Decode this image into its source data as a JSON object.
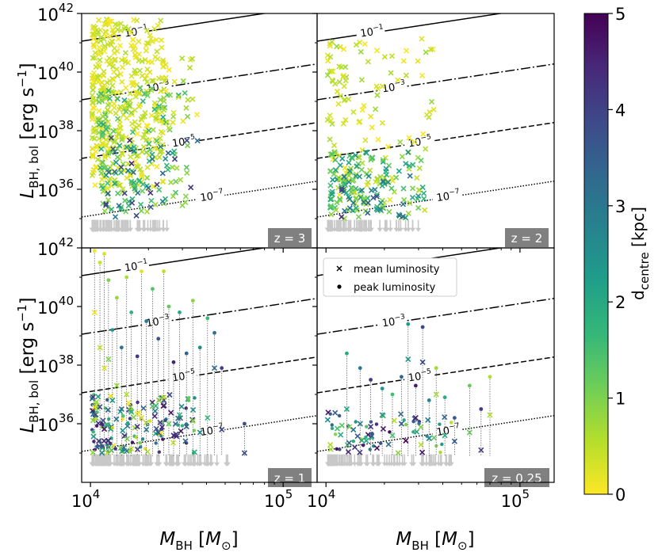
{
  "colors": {
    "cmap": [
      "#fde725",
      "#b5de2b",
      "#6ece58",
      "#35b779",
      "#1f9e89",
      "#26828e",
      "#31688e",
      "#3e4989",
      "#482878",
      "#440154"
    ],
    "badge_bg": "#808080",
    "upper_limit": "#c8c8c8",
    "connector": "#666666"
  },
  "chart_data": {
    "type": "scatter",
    "layout": "2x2 panels with shared axes and colorbar",
    "xlabel": "M_BH [M_⊙]",
    "ylabel": "L_BH,bol [erg s⁻¹]",
    "xscale": "log",
    "yscale": "log",
    "xlim": [
      9000,
      150000
    ],
    "ylim": [
      1e+34,
      1e+42
    ],
    "x_ticks": [
      {
        "value": 10000,
        "base": "10",
        "exp": "4"
      },
      {
        "value": 100000,
        "base": "10",
        "exp": "5"
      }
    ],
    "y_ticks": [
      {
        "value": 1e+36,
        "base": "10",
        "exp": "36"
      },
      {
        "value": 1e+38,
        "base": "10",
        "exp": "38"
      },
      {
        "value": 1e+40,
        "base": "10",
        "exp": "40"
      },
      {
        "value": 1e+42,
        "base": "10",
        "exp": "42"
      }
    ],
    "eddington_lines": [
      {
        "fraction": 0.1,
        "label_base": "10",
        "label_exp": "−1",
        "style": "solid",
        "label_mass": 17000
      },
      {
        "fraction": 0.001,
        "label_base": "10",
        "label_exp": "−3",
        "style": "dashdot",
        "label_mass": 22000
      },
      {
        "fraction": 1e-05,
        "label_base": "10",
        "label_exp": "−5",
        "style": "dashed",
        "label_mass": 30000
      },
      {
        "fraction": 1e-07,
        "label_base": "10",
        "label_exp": "−7",
        "style": "dotted",
        "label_mass": 42000
      }
    ],
    "colorbar": {
      "label_main": "d",
      "label_sub": "centre",
      "label_unit": "[kpc]",
      "range": [
        0,
        5
      ],
      "ticks": [
        "0",
        "1",
        "2",
        "3",
        "4",
        "5"
      ]
    },
    "legend": {
      "position": "upper-left of z = 0.25 panel",
      "entries": [
        {
          "marker": "x",
          "label": "mean luminosity"
        },
        {
          "marker": "dot",
          "label": "peak luminosity"
        }
      ]
    },
    "panels": [
      {
        "redshift_label": "z = 3",
        "marker": "x",
        "n_upper_limits": 90,
        "upper_limit_mass_range": [
          10200,
          25000
        ],
        "cloud_groups": [
          {
            "n": 420,
            "mass_range": [
              10200,
              24000
            ],
            "log_lum_range": [
              36.0,
              41.8
            ],
            "dist_range": [
              0.0,
              0.6
            ]
          },
          {
            "n": 150,
            "mass_range": [
              11000,
              32000
            ],
            "log_lum_range": [
              35.2,
              39.5
            ],
            "dist_range": [
              0.6,
              2.0
            ]
          },
          {
            "n": 40,
            "mass_range": [
              12000,
              36000
            ],
            "log_lum_range": [
              35.0,
              38.0
            ],
            "dist_range": [
              2.0,
              4.5
            ]
          },
          {
            "n": 25,
            "mass_range": [
              24000,
              36000
            ],
            "log_lum_range": [
              38.0,
              40.5
            ],
            "dist_range": [
              0.0,
              1.0
            ]
          }
        ],
        "paired": []
      },
      {
        "redshift_label": "z = 2",
        "marker": "x",
        "n_upper_limits": 70,
        "upper_limit_mass_range": [
          10200,
          30000
        ],
        "cloud_groups": [
          {
            "n": 130,
            "mass_range": [
              10200,
              36000
            ],
            "log_lum_range": [
              35.2,
              41.2
            ],
            "dist_range": [
              0.0,
              0.8
            ]
          },
          {
            "n": 140,
            "mass_range": [
              10500,
              32000
            ],
            "log_lum_range": [
              35.0,
              37.3
            ],
            "dist_range": [
              0.6,
              2.5
            ]
          },
          {
            "n": 25,
            "mass_range": [
              12000,
              30000
            ],
            "log_lum_range": [
              35.0,
              36.5
            ],
            "dist_range": [
              2.5,
              4.5
            ]
          }
        ],
        "paired": []
      },
      {
        "redshift_label": "z = 1",
        "marker": "x+dot",
        "n_upper_limits": 140,
        "upper_limit_mass_range": [
          10200,
          52000
        ],
        "cloud_groups": [
          {
            "n": 160,
            "mass_range": [
              10200,
              35000
            ],
            "log_lum_range": [
              35.0,
              37.0
            ],
            "dist_range": [
              0.0,
              4.8
            ]
          }
        ],
        "paired": [
          {
            "m": 10500,
            "mean": 39.8,
            "peak": 41.9,
            "d": 0.1
          },
          {
            "m": 11200,
            "mean": 38.6,
            "peak": 41.5,
            "d": 0.4
          },
          {
            "m": 11800,
            "mean": 37.9,
            "peak": 41.8,
            "d": 0.3
          },
          {
            "m": 12400,
            "mean": 38.2,
            "peak": 40.9,
            "d": 1.0
          },
          {
            "m": 13000,
            "mean": 36.8,
            "peak": 39.2,
            "d": 2.3
          },
          {
            "m": 13700,
            "mean": 37.3,
            "peak": 40.3,
            "d": 0.8
          },
          {
            "m": 14500,
            "mean": 36.5,
            "peak": 38.6,
            "d": 3.1
          },
          {
            "m": 15400,
            "mean": 37.0,
            "peak": 41.0,
            "d": 0.6
          },
          {
            "m": 16300,
            "mean": 36.4,
            "peak": 39.8,
            "d": 1.8
          },
          {
            "m": 17500,
            "mean": 35.9,
            "peak": 38.3,
            "d": 4.2
          },
          {
            "m": 18400,
            "mean": 36.2,
            "peak": 41.2,
            "d": 0.2
          },
          {
            "m": 19500,
            "mean": 35.8,
            "peak": 39.5,
            "d": 2.9
          },
          {
            "m": 21000,
            "mean": 36.6,
            "peak": 40.6,
            "d": 1.4
          },
          {
            "m": 22500,
            "mean": 35.7,
            "peak": 38.9,
            "d": 3.7
          },
          {
            "m": 24000,
            "mean": 36.9,
            "peak": 41.2,
            "d": 0.5
          },
          {
            "m": 25500,
            "mean": 36.0,
            "peak": 40.0,
            "d": 1.2
          },
          {
            "m": 27000,
            "mean": 35.6,
            "peak": 38.1,
            "d": 4.5
          },
          {
            "m": 29000,
            "mean": 36.3,
            "peak": 39.8,
            "d": 2.0
          },
          {
            "m": 31500,
            "mean": 35.9,
            "peak": 38.4,
            "d": 3.5
          },
          {
            "m": 34000,
            "mean": 36.1,
            "peak": 40.2,
            "d": 0.9
          },
          {
            "m": 37000,
            "mean": 35.7,
            "peak": 38.6,
            "d": 2.6
          },
          {
            "m": 40500,
            "mean": 36.2,
            "peak": 39.6,
            "d": 1.6
          },
          {
            "m": 44000,
            "mean": 37.9,
            "peak": 39.1,
            "d": 3.2
          },
          {
            "m": 48000,
            "mean": 35.8,
            "peak": 37.9,
            "d": 4.0
          },
          {
            "m": 63000,
            "mean": 35.0,
            "peak": 36.0,
            "d": 3.8
          }
        ]
      },
      {
        "redshift_label": "z = 0.25",
        "marker": "x+dot",
        "n_upper_limits": 85,
        "upper_limit_mass_range": [
          10200,
          50000
        ],
        "cloud_groups": [
          {
            "n": 70,
            "mass_range": [
              10200,
              45000
            ],
            "log_lum_range": [
              35.0,
              36.4
            ],
            "dist_range": [
              0.5,
              5.0
            ]
          }
        ],
        "paired": [
          {
            "m": 12800,
            "mean": 36.5,
            "peak": 38.4,
            "d": 2.0
          },
          {
            "m": 15000,
            "mean": 36.0,
            "peak": 37.9,
            "d": 3.0
          },
          {
            "m": 17000,
            "mean": 35.9,
            "peak": 37.5,
            "d": 4.2
          },
          {
            "m": 19500,
            "mean": 36.3,
            "peak": 37.2,
            "d": 2.4
          },
          {
            "m": 22000,
            "mean": 35.6,
            "peak": 37.0,
            "d": 1.5
          },
          {
            "m": 24500,
            "mean": 36.0,
            "peak": 37.6,
            "d": 3.4
          },
          {
            "m": 26500,
            "mean": 38.2,
            "peak": 39.4,
            "d": 2.3
          },
          {
            "m": 29000,
            "mean": 36.2,
            "peak": 37.3,
            "d": 4.6
          },
          {
            "m": 31500,
            "mean": 38.1,
            "peak": 39.3,
            "d": 3.9
          },
          {
            "m": 34000,
            "mean": 35.5,
            "peak": 36.8,
            "d": 2.7
          },
          {
            "m": 37000,
            "mean": 37.0,
            "peak": 37.9,
            "d": 0.7
          },
          {
            "m": 41000,
            "mean": 35.6,
            "peak": 36.9,
            "d": 1.9
          },
          {
            "m": 46000,
            "mean": 35.4,
            "peak": 36.2,
            "d": 3.6
          },
          {
            "m": 55000,
            "mean": 35.7,
            "peak": 37.3,
            "d": 1.2
          },
          {
            "m": 63000,
            "mean": 35.1,
            "peak": 36.5,
            "d": 4.1
          },
          {
            "m": 70000,
            "mean": 36.3,
            "peak": 37.6,
            "d": 0.6
          }
        ]
      }
    ]
  }
}
